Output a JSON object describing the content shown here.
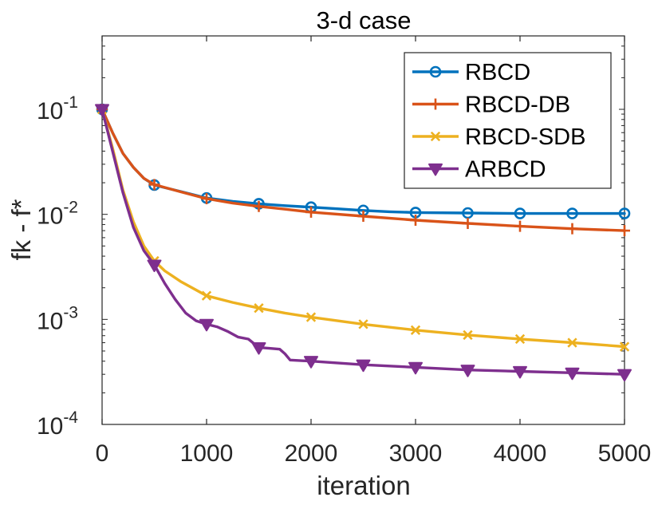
{
  "chart_data": {
    "type": "line",
    "title": "3-d case",
    "xlabel": "iteration",
    "ylabel": "fk - f*",
    "xlim": [
      0,
      5000
    ],
    "ylim": [
      0.0001,
      0.5
    ],
    "yscale": "log",
    "grid": false,
    "legend_position": "top-right",
    "x_ticks": [
      "0",
      "1000",
      "2000",
      "3000",
      "4000",
      "5000"
    ],
    "y_ticks": [
      {
        "value": 0.1,
        "base": "10",
        "exp": "-1"
      },
      {
        "value": 0.01,
        "base": "10",
        "exp": "-2"
      },
      {
        "value": 0.001,
        "base": "10",
        "exp": "-3"
      },
      {
        "value": 0.0001,
        "base": "10",
        "exp": "-4"
      }
    ],
    "series": [
      {
        "name": "RBCD",
        "color": "#0072BD",
        "marker": "circle",
        "x": [
          0,
          100,
          200,
          300,
          400,
          500,
          750,
          1000,
          1250,
          1500,
          1750,
          2000,
          2250,
          2500,
          2750,
          3000,
          3500,
          4000,
          4500,
          5000
        ],
        "y": [
          0.1,
          0.06,
          0.038,
          0.028,
          0.022,
          0.019,
          0.0165,
          0.0143,
          0.0133,
          0.0126,
          0.0121,
          0.0117,
          0.0113,
          0.0109,
          0.0106,
          0.0104,
          0.0103,
          0.0102,
          0.0102,
          0.0102
        ],
        "marker_x": [
          0,
          500,
          1000,
          1500,
          2000,
          2500,
          3000,
          3500,
          4000,
          4500,
          5000
        ]
      },
      {
        "name": "RBCD-DB",
        "color": "#D95319",
        "marker": "plus",
        "x": [
          0,
          100,
          200,
          300,
          400,
          500,
          750,
          1000,
          1250,
          1500,
          1750,
          2000,
          2500,
          3000,
          3500,
          4000,
          4500,
          5000
        ],
        "y": [
          0.1,
          0.06,
          0.038,
          0.028,
          0.022,
          0.0192,
          0.0164,
          0.0141,
          0.0128,
          0.0119,
          0.0112,
          0.0105,
          0.0096,
          0.0088,
          0.0082,
          0.0077,
          0.0073,
          0.007
        ],
        "marker_x": [
          0,
          500,
          1000,
          1500,
          2000,
          2500,
          3000,
          3500,
          4000,
          4500,
          5000
        ]
      },
      {
        "name": "RBCD-SDB",
        "color": "#EDB120",
        "marker": "x",
        "x": [
          0,
          100,
          200,
          300,
          400,
          500,
          600,
          750,
          1000,
          1250,
          1500,
          1750,
          2000,
          2500,
          3000,
          3500,
          4000,
          4500,
          5000
        ],
        "y": [
          0.1,
          0.043,
          0.017,
          0.0085,
          0.005,
          0.0036,
          0.0029,
          0.0023,
          0.00168,
          0.00145,
          0.00128,
          0.00115,
          0.00105,
          0.0009,
          0.00079,
          0.00071,
          0.00065,
          0.0006,
          0.00055
        ],
        "marker_x": [
          0,
          500,
          1000,
          1500,
          2000,
          2500,
          3000,
          3500,
          4000,
          4500,
          5000
        ]
      },
      {
        "name": "ARBCD",
        "color": "#7E2F8E",
        "marker": "triangle-down",
        "x": [
          0,
          100,
          200,
          300,
          400,
          500,
          600,
          700,
          800,
          900,
          1000,
          1100,
          1200,
          1300,
          1400,
          1500,
          1600,
          1700,
          1750,
          1800,
          2000,
          2500,
          3000,
          3500,
          4000,
          4500,
          5000
        ],
        "y": [
          0.1,
          0.04,
          0.016,
          0.0075,
          0.0045,
          0.0033,
          0.0022,
          0.00155,
          0.00115,
          0.00097,
          0.0009,
          0.00085,
          0.00077,
          0.00068,
          0.00065,
          0.00054,
          0.00053,
          0.00052,
          0.00047,
          0.00041,
          0.0004,
          0.00037,
          0.00035,
          0.00033,
          0.00032,
          0.00031,
          0.0003
        ],
        "marker_x": [
          0,
          500,
          1000,
          1500,
          2000,
          2500,
          3000,
          3500,
          4000,
          4500,
          5000
        ]
      }
    ]
  }
}
